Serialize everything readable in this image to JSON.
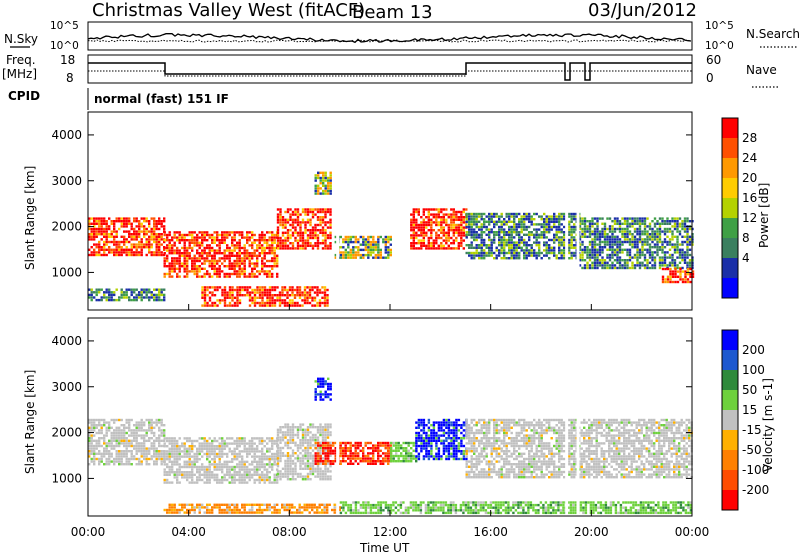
{
  "header": {
    "title": "Christmas Valley West (fitACF)",
    "beam": "Beam 13",
    "date": "03/Jun/2012"
  },
  "panels": {
    "nsky_label": "N.Sky",
    "nsky_ticks": [
      "10^5",
      "10^0"
    ],
    "nsearch_label": "N.Search",
    "nsearch_ticks": [
      "10^5",
      "10^0"
    ],
    "freq_label": "Freq.",
    "freq_unit": "[MHz]",
    "freq_ticks": [
      "18",
      "8"
    ],
    "nave_label": "Nave",
    "nave_ticks": [
      "60",
      "0"
    ],
    "cpid_label": "CPID",
    "cpid_value": "normal (fast) 151 IF"
  },
  "chart_data": [
    {
      "type": "heatmap",
      "panel": "power",
      "ylabel": "Slant Range [km]",
      "xlim": [
        0,
        24
      ],
      "ylim": [
        180,
        4500
      ],
      "yticks": [
        1000,
        2000,
        3000,
        4000
      ],
      "ytick_labels": [
        "1000",
        "2000",
        "3000",
        "4000"
      ],
      "colorbar": {
        "label": "Power [dB]",
        "ticks": [
          "28",
          "24",
          "20",
          "16",
          "12",
          "8",
          "4"
        ],
        "colors": [
          "#ff0000",
          "#ff5000",
          "#ff9900",
          "#ffcc00",
          "#b4d200",
          "#3fa045",
          "#3a7f5f",
          "#1a2fa8",
          "#0000ff"
        ]
      },
      "regions": [
        {
          "t0": 0.0,
          "t1": 3.0,
          "r0": 1400,
          "r1": 2200,
          "level": "high"
        },
        {
          "t0": 0.0,
          "t1": 3.0,
          "r0": 400,
          "r1": 650,
          "level": "low"
        },
        {
          "t0": 3.0,
          "t1": 7.5,
          "r0": 900,
          "r1": 1900,
          "level": "high"
        },
        {
          "t0": 4.5,
          "t1": 9.5,
          "r0": 250,
          "r1": 700,
          "level": "high"
        },
        {
          "t0": 7.5,
          "t1": 9.6,
          "r0": 1500,
          "r1": 2400,
          "level": "high"
        },
        {
          "t0": 9.0,
          "t1": 9.6,
          "r0": 2700,
          "r1": 3200,
          "level": "mid"
        },
        {
          "t0": 9.8,
          "t1": 12.0,
          "r0": 1300,
          "r1": 1800,
          "level": "mid"
        },
        {
          "t0": 12.8,
          "t1": 15.0,
          "r0": 1500,
          "r1": 2400,
          "level": "high"
        },
        {
          "t0": 15.0,
          "t1": 19.5,
          "r0": 1300,
          "r1": 2300,
          "level": "low"
        },
        {
          "t0": 19.5,
          "t1": 24.0,
          "r0": 1100,
          "r1": 2200,
          "level": "low"
        },
        {
          "t0": 22.8,
          "t1": 24.0,
          "r0": 800,
          "r1": 1100,
          "level": "high"
        }
      ]
    },
    {
      "type": "heatmap",
      "panel": "velocity",
      "ylabel": "Slant Range [km]",
      "xlabel": "Time UT",
      "xlim": [
        0,
        24
      ],
      "xticks": [
        "00:00",
        "04:00",
        "08:00",
        "12:00",
        "16:00",
        "20:00",
        "00:00"
      ],
      "ylim": [
        180,
        4500
      ],
      "yticks": [
        1000,
        2000,
        3000,
        4000
      ],
      "ytick_labels": [
        "1000",
        "2000",
        "3000",
        "4000"
      ],
      "colorbar": {
        "label": "Velocity [m s-1]",
        "ticks": [
          "200",
          "100",
          "50",
          "15",
          "-15",
          "-50",
          "-100",
          "-200"
        ],
        "colors": [
          "#0000ff",
          "#1c58d0",
          "#2f8a3b",
          "#6ed13c",
          "#c0c0c0",
          "#ffb000",
          "#ff8000",
          "#ff4d00",
          "#ff0000"
        ]
      },
      "regions": [
        {
          "t0": 0.0,
          "t1": 3.0,
          "r0": 1300,
          "r1": 2300,
          "vel": "ground"
        },
        {
          "t0": 3.0,
          "t1": 7.5,
          "r0": 900,
          "r1": 1900,
          "vel": "ground"
        },
        {
          "t0": 7.5,
          "t1": 9.6,
          "r0": 1000,
          "r1": 2200,
          "vel": "ground"
        },
        {
          "t0": 9.0,
          "t1": 12.0,
          "r0": 1300,
          "r1": 1800,
          "vel": "negative"
        },
        {
          "t0": 9.0,
          "t1": 9.6,
          "r0": 2700,
          "r1": 3200,
          "vel": "positive"
        },
        {
          "t0": 12.0,
          "t1": 13.0,
          "r0": 1400,
          "r1": 1800,
          "vel": "slow-positive"
        },
        {
          "t0": 13.0,
          "t1": 15.0,
          "r0": 1400,
          "r1": 2300,
          "vel": "positive"
        },
        {
          "t0": 15.0,
          "t1": 24.0,
          "r0": 1000,
          "r1": 2300,
          "vel": "ground"
        },
        {
          "t0": 10.0,
          "t1": 24.0,
          "r0": 250,
          "r1": 500,
          "vel": "slow-positive"
        },
        {
          "t0": 3.0,
          "t1": 10.0,
          "r0": 250,
          "r1": 450,
          "vel": "slow-negative"
        }
      ]
    }
  ]
}
